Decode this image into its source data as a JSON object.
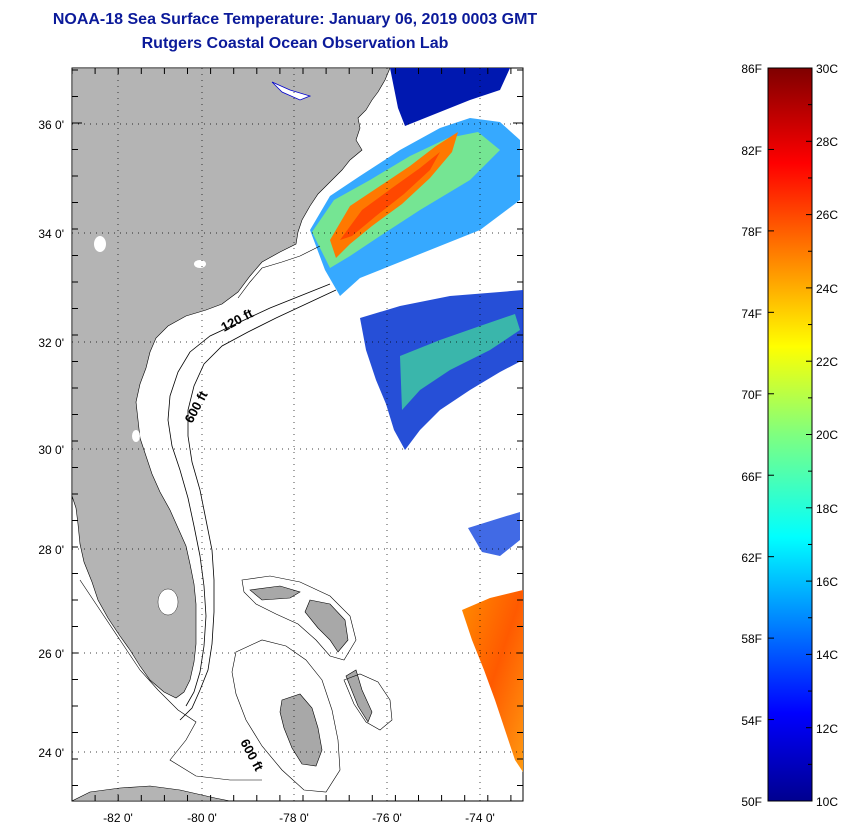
{
  "title_line1": "NOAA-18 Sea Surface Temperature:  January 06, 2019 0003 GMT",
  "title_line2": "Rutgers Coastal Ocean Observation Lab",
  "map": {
    "lon_range": [
      -83,
      -73
    ],
    "lat_range": [
      23,
      37
    ],
    "lon_labels": [
      "-82 0'",
      "-80 0'",
      "-78 0'",
      "-76 0'",
      "-74 0'"
    ],
    "lat_labels": [
      "36 0'",
      "34 0'",
      "32 0'",
      "30 0'",
      "28 0'",
      "26 0'",
      "24 0'"
    ],
    "contour_labels": [
      "120 ft",
      "600 ft",
      "600 ft"
    ],
    "land_color": "#b4b4b4",
    "no_data_color": "#ffffff"
  },
  "colorbar": {
    "f_labels": [
      "86F",
      "82F",
      "78F",
      "74F",
      "70F",
      "66F",
      "62F",
      "58F",
      "54F",
      "50F"
    ],
    "c_labels": [
      "30C",
      "28C",
      "26C",
      "24C",
      "22C",
      "20C",
      "18C",
      "16C",
      "14C",
      "12C",
      "10C"
    ],
    "f_range": [
      50,
      86
    ],
    "c_range": [
      10,
      30
    ]
  }
}
